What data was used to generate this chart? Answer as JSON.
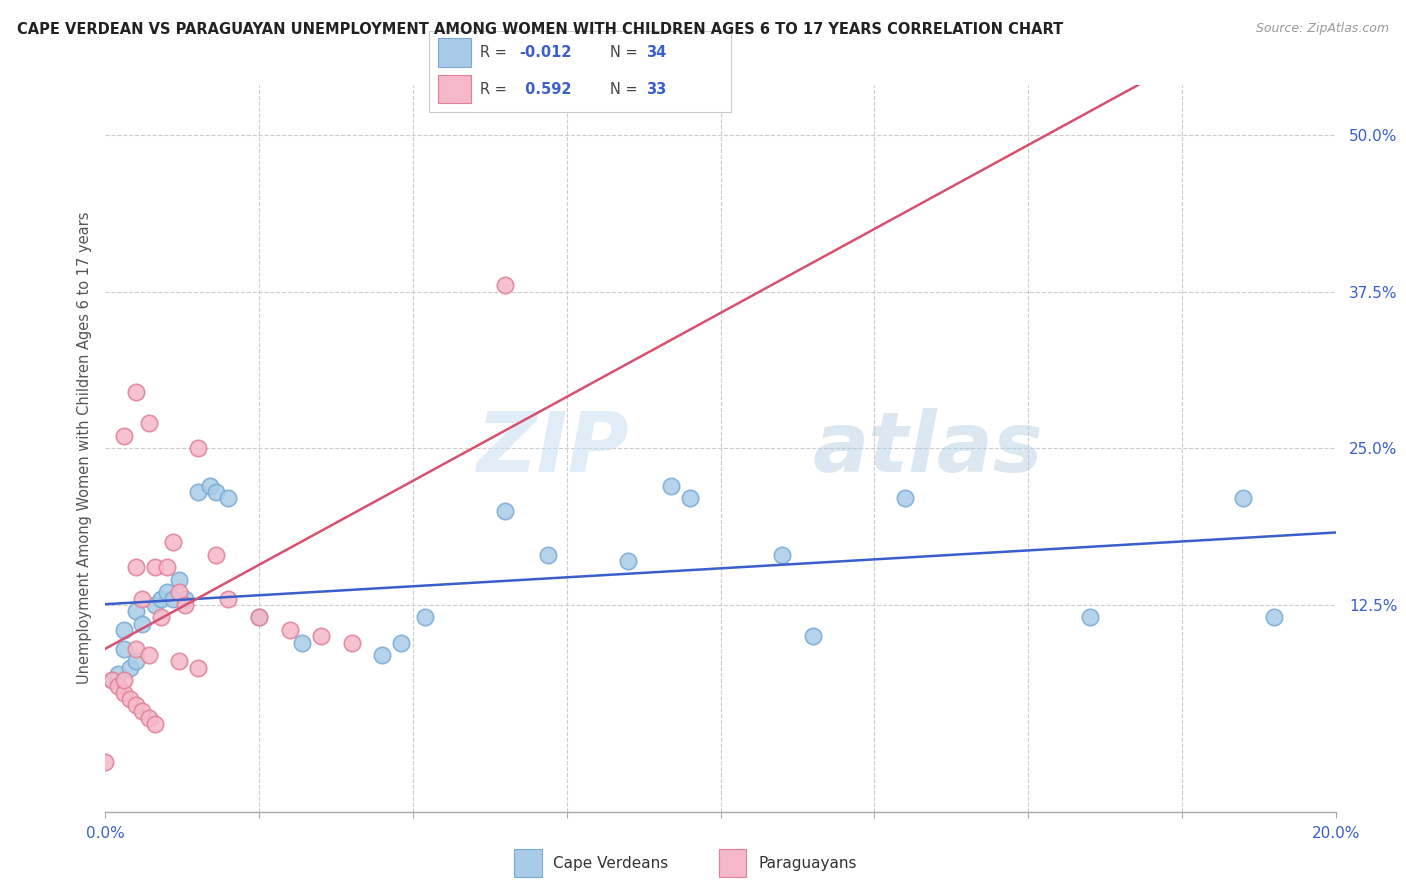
{
  "title": "CAPE VERDEAN VS PARAGUAYAN UNEMPLOYMENT AMONG WOMEN WITH CHILDREN AGES 6 TO 17 YEARS CORRELATION CHART",
  "source": "Source: ZipAtlas.com",
  "ylabel": "Unemployment Among Women with Children Ages 6 to 17 years",
  "xlim": [
    0.0,
    0.2
  ],
  "ylim": [
    -0.04,
    0.54
  ],
  "watermark_zip": "ZIP",
  "watermark_atlas": "atlas",
  "blue_color": "#A8CCE8",
  "blue_edge": "#7AAAD4",
  "pink_color": "#F5B8C8",
  "pink_edge": "#E08098",
  "blue_line_color": "#3A5FCD",
  "pink_line_color": "#D85070",
  "grid_color": "#cccccc",
  "ytick_positions": [
    0.125,
    0.25,
    0.375,
    0.5
  ],
  "ytick_labels": [
    "12.5%",
    "25.0%",
    "37.5%",
    "50.0%"
  ],
  "xtick_positions": [
    0.0,
    0.025,
    0.05,
    0.075,
    0.1,
    0.125,
    0.15,
    0.175,
    0.2
  ],
  "xtick_labels": [
    "0.0%",
    "",
    "",
    "",
    "",
    "",
    "",
    "",
    "20.0%"
  ],
  "r1": "-0.012",
  "n1": "34",
  "r2": "0.592",
  "n2": "33",
  "cv_x": [
    0.001,
    0.002,
    0.003,
    0.003,
    0.004,
    0.005,
    0.005,
    0.006,
    0.008,
    0.009,
    0.01,
    0.011,
    0.012,
    0.013,
    0.015,
    0.017,
    0.018,
    0.02,
    0.025,
    0.032,
    0.045,
    0.048,
    0.052,
    0.065,
    0.072,
    0.085,
    0.092,
    0.095,
    0.11,
    0.115,
    0.13,
    0.16,
    0.185,
    0.19
  ],
  "cv_y": [
    0.065,
    0.07,
    0.09,
    0.105,
    0.075,
    0.08,
    0.12,
    0.11,
    0.125,
    0.13,
    0.135,
    0.13,
    0.145,
    0.13,
    0.215,
    0.22,
    0.215,
    0.21,
    0.115,
    0.095,
    0.085,
    0.095,
    0.115,
    0.2,
    0.165,
    0.16,
    0.22,
    0.21,
    0.165,
    0.1,
    0.21,
    0.115,
    0.21,
    0.115
  ],
  "py_x": [
    0.0,
    0.001,
    0.002,
    0.003,
    0.003,
    0.004,
    0.005,
    0.005,
    0.005,
    0.006,
    0.006,
    0.007,
    0.007,
    0.008,
    0.008,
    0.009,
    0.01,
    0.011,
    0.012,
    0.012,
    0.013,
    0.015,
    0.015,
    0.018,
    0.02,
    0.025,
    0.03,
    0.035,
    0.04,
    0.005,
    0.007,
    0.065,
    0.003
  ],
  "py_y": [
    0.0,
    0.065,
    0.06,
    0.055,
    0.26,
    0.05,
    0.045,
    0.09,
    0.155,
    0.04,
    0.13,
    0.035,
    0.27,
    0.03,
    0.155,
    0.115,
    0.155,
    0.175,
    0.08,
    0.135,
    0.125,
    0.075,
    0.25,
    0.165,
    0.13,
    0.115,
    0.105,
    0.1,
    0.095,
    0.295,
    0.085,
    0.38,
    0.065
  ]
}
